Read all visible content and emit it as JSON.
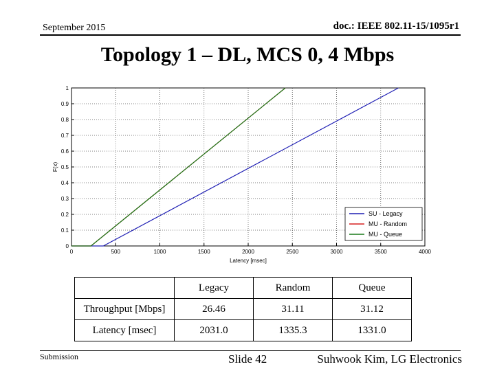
{
  "header": {
    "date": "September 2015",
    "doc": "doc.: IEEE 802.11-15/1095r1"
  },
  "title": "Topology 1 – DL, MCS 0, 4 Mbps",
  "chart_data": {
    "type": "line",
    "xlabel": "Latency [msec]",
    "ylabel": "F(x)",
    "xlim": [
      0,
      4000
    ],
    "ylim": [
      0,
      1
    ],
    "xticks": [
      0,
      500,
      1000,
      1500,
      2000,
      2500,
      3000,
      3500,
      4000
    ],
    "yticks": [
      0,
      0.1,
      0.2,
      0.3,
      0.4,
      0.5,
      0.6,
      0.7,
      0.8,
      0.9,
      1
    ],
    "grid": true,
    "legend_position": "bottom-right",
    "series": [
      {
        "name": "SU - Legacy",
        "color": "#1f1fb4",
        "x": [
          0,
          280,
          360,
          3700
        ],
        "y": [
          0,
          0,
          0,
          1
        ]
      },
      {
        "name": "MU - Random",
        "color": "#d62020",
        "x": [
          0,
          170,
          220,
          2420
        ],
        "y": [
          0,
          0,
          0,
          1
        ]
      },
      {
        "name": "MU - Queue",
        "color": "#1a7a1a",
        "x": [
          0,
          170,
          220,
          2420
        ],
        "y": [
          0,
          0,
          0,
          1
        ]
      }
    ]
  },
  "table": {
    "header": [
      "",
      "Legacy",
      "Random",
      "Queue"
    ],
    "rows": [
      [
        "Throughput [Mbps]",
        "26.46",
        "31.11",
        "31.12"
      ],
      [
        "Latency [msec]",
        "2031.0",
        "1335.3",
        "1331.0"
      ]
    ]
  },
  "footer": {
    "left": "Submission",
    "center": "Slide 42",
    "right": "Suhwook Kim, LG Electronics"
  }
}
